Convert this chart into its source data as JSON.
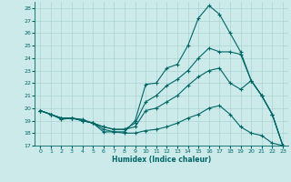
{
  "xlabel": "Humidex (Indice chaleur)",
  "bg_color": "#cceaea",
  "grid_color": "#aad4d4",
  "line_color": "#006666",
  "xlim": [
    -0.5,
    23.5
  ],
  "ylim": [
    17,
    28.5
  ],
  "xticks": [
    0,
    1,
    2,
    3,
    4,
    5,
    6,
    7,
    8,
    9,
    10,
    11,
    12,
    13,
    14,
    15,
    16,
    17,
    18,
    19,
    20,
    21,
    22,
    23
  ],
  "yticks": [
    17,
    18,
    19,
    20,
    21,
    22,
    23,
    24,
    25,
    26,
    27,
    28
  ],
  "line1_x": [
    0,
    1,
    2,
    3,
    4,
    5,
    6,
    7,
    8,
    9,
    10,
    11,
    12,
    13,
    14,
    15,
    16,
    17,
    18,
    19,
    20,
    21,
    22,
    23
  ],
  "line1_y": [
    19.8,
    19.5,
    19.1,
    19.2,
    19.1,
    18.8,
    18.1,
    18.1,
    18.1,
    19.0,
    21.9,
    22.0,
    23.2,
    23.5,
    25.0,
    27.2,
    28.2,
    27.5,
    26.0,
    24.5,
    22.2,
    21.0,
    19.5,
    17.0
  ],
  "line2_x": [
    0,
    1,
    2,
    3,
    4,
    5,
    6,
    7,
    8,
    9,
    10,
    11,
    12,
    13,
    14,
    15,
    16,
    17,
    18,
    19,
    20,
    21,
    22,
    23
  ],
  "line2_y": [
    19.8,
    19.5,
    19.2,
    19.2,
    19.0,
    18.8,
    18.5,
    18.3,
    18.3,
    18.8,
    20.5,
    21.0,
    21.8,
    22.3,
    23.0,
    24.0,
    24.8,
    24.5,
    24.5,
    24.3,
    22.2,
    21.0,
    19.5,
    17.0
  ],
  "line3_x": [
    0,
    1,
    2,
    3,
    4,
    5,
    6,
    7,
    8,
    9,
    10,
    11,
    12,
    13,
    14,
    15,
    16,
    17,
    18,
    19,
    20,
    21,
    22,
    23
  ],
  "line3_y": [
    19.8,
    19.5,
    19.2,
    19.2,
    19.0,
    18.8,
    18.5,
    18.3,
    18.3,
    18.5,
    19.8,
    20.0,
    20.5,
    21.0,
    21.8,
    22.5,
    23.0,
    23.2,
    22.0,
    21.5,
    22.2,
    21.0,
    19.5,
    17.0
  ],
  "line4_x": [
    0,
    1,
    2,
    3,
    4,
    5,
    6,
    7,
    8,
    9,
    10,
    11,
    12,
    13,
    14,
    15,
    16,
    17,
    18,
    19,
    20,
    21,
    22,
    23
  ],
  "line4_y": [
    19.8,
    19.5,
    19.2,
    19.2,
    19.0,
    18.8,
    18.3,
    18.1,
    18.0,
    18.0,
    18.2,
    18.3,
    18.5,
    18.8,
    19.2,
    19.5,
    20.0,
    20.2,
    19.5,
    18.5,
    18.0,
    17.8,
    17.2,
    17.0
  ]
}
